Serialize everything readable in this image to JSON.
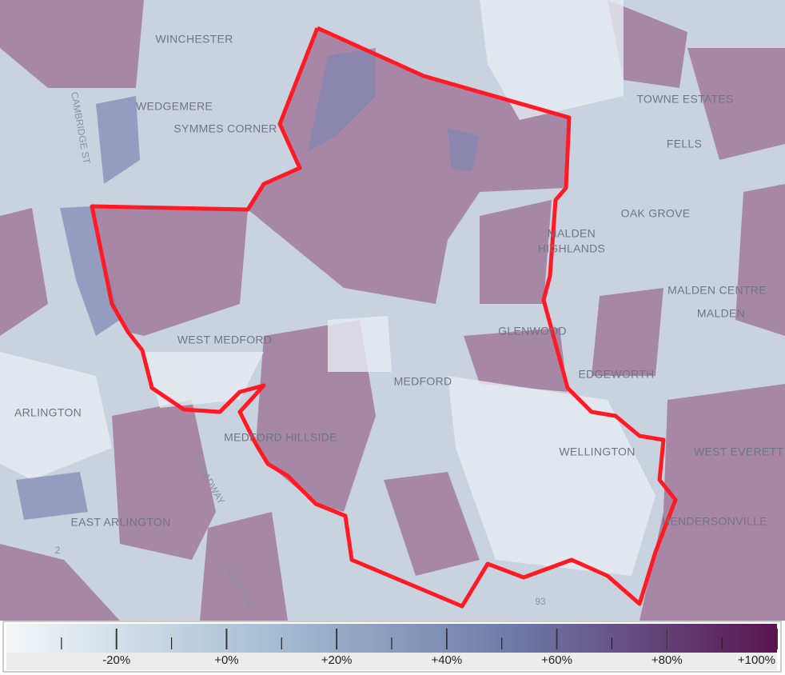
{
  "map": {
    "places": [
      "WINCHESTER",
      "WEDGEMERE",
      "SYMMES CORNER",
      "CAMBRIDGE ST",
      "TOWNE ESTATES",
      "FELLS",
      "OAK GROVE",
      "MALDEN",
      "HIGHLANDS",
      "MALDEN CENTRE",
      "MALDEN",
      "WEST MEDFORD",
      "GLENWOOD",
      "EDGEWORTH",
      "MEDFORD",
      "ARLINGTON",
      "MEDFORD HILLSIDE",
      "WELLINGTON",
      "WEST EVERETT",
      "HENDERSONVILLE",
      "EAST ARLINGTON",
      "BROADWAY",
      "MASSACH",
      "2",
      "93"
    ]
  },
  "legend": {
    "range": [
      -40,
      100
    ],
    "colors": [
      "#f3f6f8",
      "#a8c0d4",
      "#6d78a6",
      "#5a1450"
    ],
    "ticks": [
      {
        "value": -20,
        "label": "-20%"
      },
      {
        "value": 0,
        "label": "+0%"
      },
      {
        "value": 20,
        "label": "+20%"
      },
      {
        "value": 40,
        "label": "+40%"
      },
      {
        "value": 60,
        "label": "+60%"
      },
      {
        "value": 80,
        "label": "+80%"
      },
      {
        "value": 100,
        "label": "+100%"
      }
    ],
    "minor_ticks": [
      -30,
      -10,
      10,
      30,
      50,
      70,
      90
    ]
  }
}
